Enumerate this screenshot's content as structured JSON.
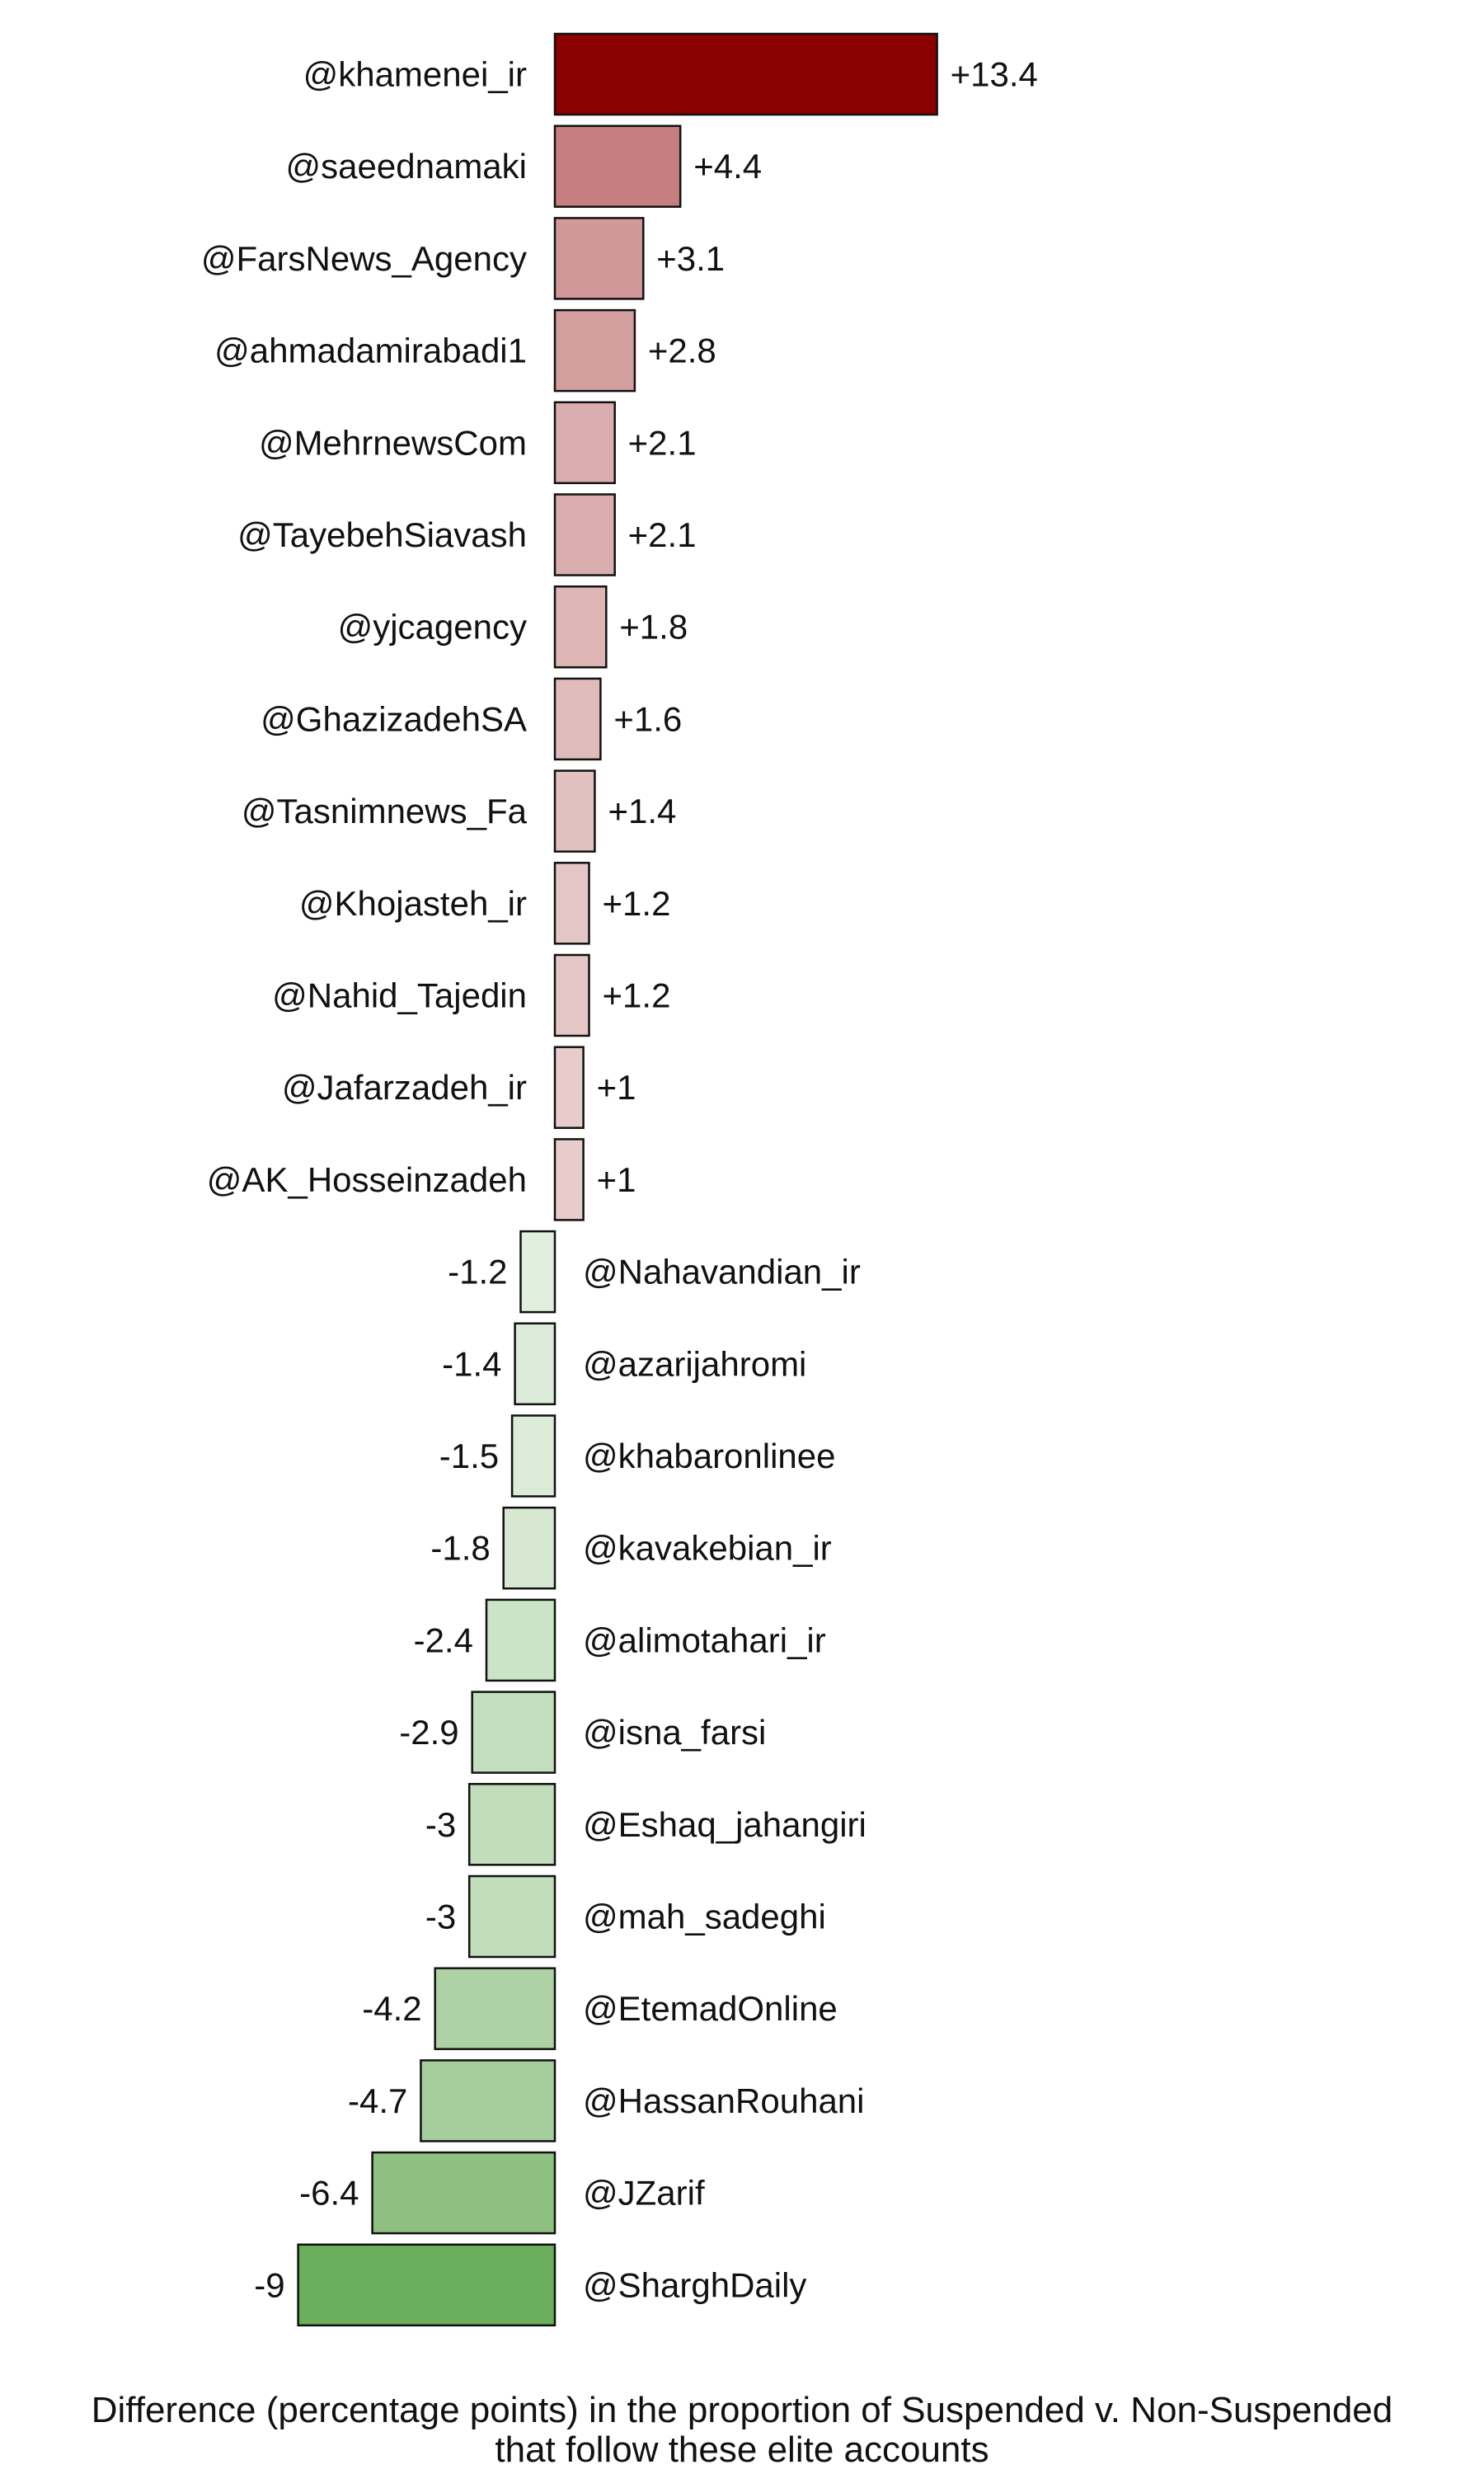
{
  "chart_data": {
    "type": "bar",
    "orientation": "horizontal",
    "categories": [
      "@khamenei_ir",
      "@saeednamaki",
      "@FarsNews_Agency",
      "@ahmadamirabadi1",
      "@MehrnewsCom",
      "@TayebehSiavash",
      "@yjcagency",
      "@GhazizadehSA",
      "@Tasnimnews_Fa",
      "@Khojasteh_ir",
      "@Nahid_Tajedin",
      "@Jafarzadeh_ir",
      "@AK_Hosseinzadeh",
      "@Nahavandian_ir",
      "@azarijahromi",
      "@khabaronlinee",
      "@kavakebian_ir",
      "@alimotahari_ir",
      "@isna_farsi",
      "@Eshaq_jahangiri",
      "@mah_sadeghi",
      "@EtemadOnline",
      "@HassanRouhani",
      "@JZarif",
      "@SharghDaily"
    ],
    "values": [
      13.4,
      4.4,
      3.1,
      2.8,
      2.1,
      2.1,
      1.8,
      1.6,
      1.4,
      1.2,
      1.2,
      1,
      1,
      -1.2,
      -1.4,
      -1.5,
      -1.8,
      -2.4,
      -2.9,
      -3,
      -3,
      -4.2,
      -4.7,
      -6.4,
      -9
    ],
    "value_labels": [
      "+13.4",
      "+4.4",
      "+3.1",
      "+2.8",
      "+2.1",
      "+2.1",
      "+1.8",
      "+1.6",
      "+1.4",
      "+1.2",
      "+1.2",
      "+1",
      "+1",
      "-1.2",
      "-1.4",
      "-1.5",
      "-1.8",
      "-2.4",
      "-2.9",
      "-3",
      "-3",
      "-4.2",
      "-4.7",
      "-6.4",
      "-9"
    ],
    "xlabel_line1": "Difference (percentage points) in the proportion of Suspended v. Non-Suspended",
    "xlabel_line2": "that follow these elite accounts",
    "title": "",
    "grid": false,
    "legend": "none",
    "colors": {
      "positive_max": "#8b0000",
      "negative_max": "#6aad5a",
      "zero": "#ffffff",
      "bar_outline": "#111111"
    }
  }
}
